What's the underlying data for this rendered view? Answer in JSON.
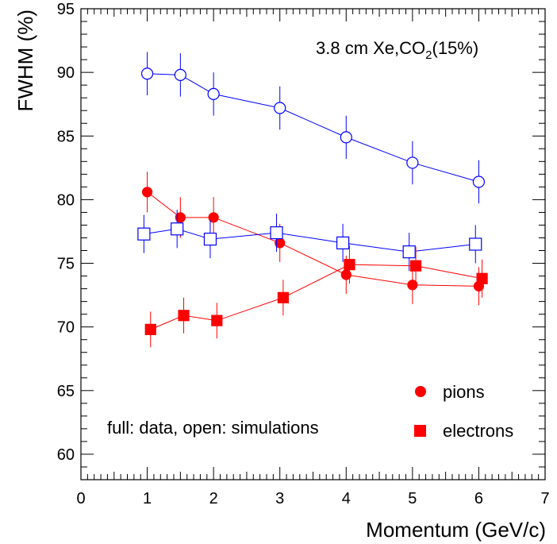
{
  "chart_data": {
    "type": "scatter",
    "title": "",
    "xlabel": "Momentum (GeV/c)",
    "ylabel": "FWHM (%)",
    "xlim": [
      0,
      7
    ],
    "ylim": [
      58,
      95
    ],
    "x_ticks": [
      0,
      1,
      2,
      3,
      4,
      5,
      6,
      7
    ],
    "y_ticks": [
      60,
      65,
      70,
      75,
      80,
      85,
      90,
      95
    ],
    "grid": false,
    "annotation": {
      "main": "3.8 cm Xe,CO",
      "sub": "2",
      "tail": "(15%)"
    },
    "note": "full: data, open: simulations",
    "legend": {
      "position": "bottom-right",
      "entries": [
        {
          "label": "pions",
          "marker": "circle",
          "fill": "#ff0000"
        },
        {
          "label": "electrons",
          "marker": "square",
          "fill": "#ff0000"
        }
      ]
    },
    "series": [
      {
        "particle": "pions",
        "kind": "simulation",
        "marker": "circle",
        "filled": false,
        "color": "#0000ff",
        "x": [
          1,
          1.5,
          2,
          3,
          4,
          5,
          6
        ],
        "y": [
          89.9,
          89.8,
          88.3,
          87.2,
          84.9,
          82.9,
          81.4
        ],
        "yerr": [
          1.7,
          1.7,
          1.7,
          1.7,
          1.7,
          1.7,
          1.7
        ]
      },
      {
        "particle": "pions",
        "kind": "data",
        "marker": "circle",
        "filled": true,
        "color": "#ff0000",
        "x": [
          1,
          1.5,
          2,
          3,
          4,
          5,
          6
        ],
        "y": [
          80.6,
          78.6,
          78.6,
          76.6,
          74.1,
          73.3,
          73.2
        ],
        "yerr": [
          1.6,
          1.6,
          1.6,
          1.5,
          1.5,
          1.5,
          1.5
        ]
      },
      {
        "particle": "electrons",
        "kind": "simulation",
        "marker": "square",
        "filled": false,
        "color": "#0000ff",
        "x": [
          0.95,
          1.45,
          1.95,
          2.95,
          3.95,
          4.95,
          5.95
        ],
        "y": [
          77.3,
          77.7,
          76.9,
          77.4,
          76.6,
          75.9,
          76.5
        ],
        "yerr": [
          1.5,
          1.5,
          1.5,
          1.5,
          1.5,
          1.5,
          1.5
        ]
      },
      {
        "particle": "electrons",
        "kind": "data",
        "marker": "square",
        "filled": true,
        "color": "#ff0000",
        "x": [
          1.05,
          1.55,
          2.05,
          3.05,
          4.05,
          5.05,
          6.05
        ],
        "y": [
          69.8,
          70.9,
          70.5,
          72.3,
          74.9,
          74.8,
          73.8
        ],
        "yerr": [
          1.4,
          1.4,
          1.4,
          1.4,
          1.5,
          1.5,
          1.5
        ]
      }
    ]
  }
}
